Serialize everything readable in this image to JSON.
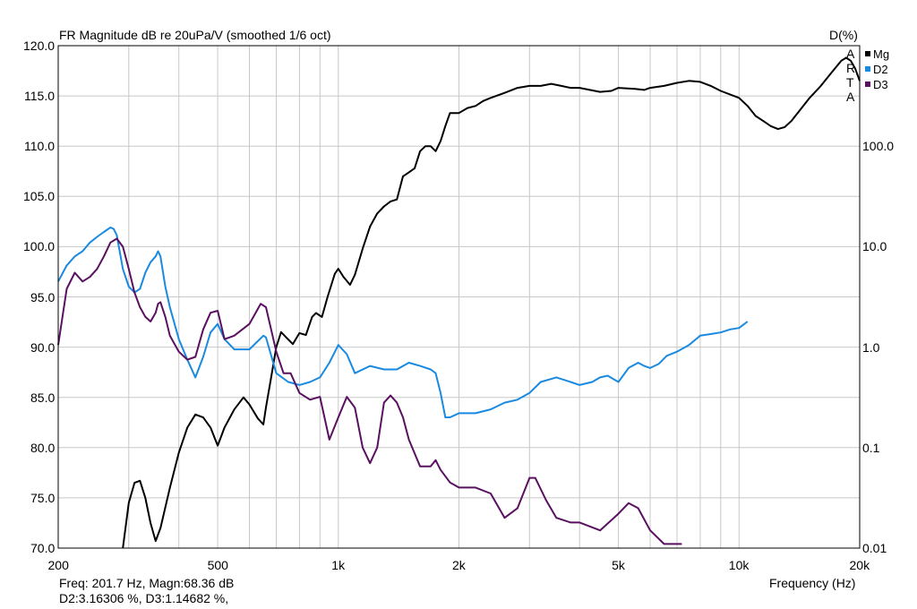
{
  "chart_data": {
    "type": "line",
    "title": "FR Magnitude dB re 20uPa/V (smoothed 1/6 oct)",
    "right_axis_title": "D(%)",
    "xlabel": "Frequency (Hz)",
    "xscale": "log",
    "xlim": [
      200,
      20000
    ],
    "ylim": [
      70,
      120
    ],
    "y2scale": "log",
    "y2lim": [
      0.01,
      1000
    ],
    "x_ticks": [
      {
        "value": 200,
        "label": "200"
      },
      {
        "value": 500,
        "label": "500"
      },
      {
        "value": 1000,
        "label": "1k"
      },
      {
        "value": 2000,
        "label": "2k"
      },
      {
        "value": 5000,
        "label": "5k"
      },
      {
        "value": 10000,
        "label": "10k"
      },
      {
        "value": 20000,
        "label": "20k"
      }
    ],
    "y_ticks": [
      "120.0",
      "115.0",
      "110.0",
      "105.0",
      "100.0",
      "95.0",
      "90.0",
      "85.0",
      "80.0",
      "75.0",
      "70.0"
    ],
    "y2_ticks": [
      {
        "value": 100,
        "label": "100.0"
      },
      {
        "value": 10,
        "label": "10.0"
      },
      {
        "value": 1,
        "label": "1.0"
      },
      {
        "value": 0.1,
        "label": "0.1"
      },
      {
        "value": 0.01,
        "label": "0.01"
      }
    ],
    "grid": true,
    "legend_position": "top-right",
    "series": [
      {
        "name": "Mg",
        "axis": "left",
        "color": "#000000",
        "points": [
          [
            290,
            70
          ],
          [
            300,
            74.5
          ],
          [
            310,
            76.5
          ],
          [
            320,
            76.7
          ],
          [
            330,
            75
          ],
          [
            340,
            72.5
          ],
          [
            350,
            70.7
          ],
          [
            360,
            72
          ],
          [
            380,
            76
          ],
          [
            400,
            79.5
          ],
          [
            420,
            82
          ],
          [
            440,
            83.3
          ],
          [
            460,
            83
          ],
          [
            480,
            82
          ],
          [
            500,
            80.2
          ],
          [
            520,
            82
          ],
          [
            550,
            83.8
          ],
          [
            580,
            85
          ],
          [
            600,
            84.3
          ],
          [
            630,
            82.9
          ],
          [
            650,
            82.3
          ],
          [
            660,
            84
          ],
          [
            680,
            87
          ],
          [
            700,
            90
          ],
          [
            720,
            91.5
          ],
          [
            740,
            91
          ],
          [
            770,
            90.3
          ],
          [
            800,
            91.4
          ],
          [
            830,
            91.2
          ],
          [
            860,
            93
          ],
          [
            880,
            93.4
          ],
          [
            910,
            93
          ],
          [
            940,
            95
          ],
          [
            980,
            97.3
          ],
          [
            1000,
            97.8
          ],
          [
            1030,
            97
          ],
          [
            1070,
            96.2
          ],
          [
            1100,
            97.2
          ],
          [
            1150,
            99.8
          ],
          [
            1200,
            102
          ],
          [
            1250,
            103.3
          ],
          [
            1300,
            104
          ],
          [
            1350,
            104.5
          ],
          [
            1400,
            104.7
          ],
          [
            1450,
            107
          ],
          [
            1500,
            107.4
          ],
          [
            1550,
            107.8
          ],
          [
            1600,
            109.5
          ],
          [
            1650,
            110
          ],
          [
            1700,
            110
          ],
          [
            1750,
            109.5
          ],
          [
            1800,
            110.5
          ],
          [
            1850,
            112
          ],
          [
            1900,
            113.3
          ],
          [
            2000,
            113.3
          ],
          [
            2100,
            113.8
          ],
          [
            2200,
            114
          ],
          [
            2300,
            114.5
          ],
          [
            2400,
            114.8
          ],
          [
            2600,
            115.3
          ],
          [
            2800,
            115.8
          ],
          [
            3000,
            116
          ],
          [
            3200,
            116
          ],
          [
            3400,
            116.2
          ],
          [
            3600,
            116
          ],
          [
            3800,
            115.8
          ],
          [
            4000,
            115.8
          ],
          [
            4500,
            115.4
          ],
          [
            4800,
            115.5
          ],
          [
            5000,
            115.8
          ],
          [
            5500,
            115.7
          ],
          [
            5800,
            115.6
          ],
          [
            6000,
            115.8
          ],
          [
            6500,
            116
          ],
          [
            7000,
            116.3
          ],
          [
            7500,
            116.5
          ],
          [
            8000,
            116.4
          ],
          [
            8500,
            116
          ],
          [
            9000,
            115.5
          ],
          [
            10000,
            114.8
          ],
          [
            10500,
            114
          ],
          [
            11000,
            113
          ],
          [
            11500,
            112.5
          ],
          [
            12000,
            112
          ],
          [
            12500,
            111.7
          ],
          [
            13000,
            111.9
          ],
          [
            13500,
            112.5
          ],
          [
            14000,
            113.3
          ],
          [
            15000,
            114.8
          ],
          [
            16000,
            116
          ],
          [
            17000,
            117.3
          ],
          [
            18000,
            118.5
          ],
          [
            18500,
            118.8
          ],
          [
            19000,
            118.5
          ],
          [
            19500,
            117.7
          ],
          [
            20000,
            116.5
          ]
        ]
      },
      {
        "name": "D2",
        "axis": "right",
        "color": "#1a8ae0",
        "points": [
          [
            200,
            4.5
          ],
          [
            210,
            6.5
          ],
          [
            220,
            8
          ],
          [
            230,
            9
          ],
          [
            240,
            11
          ],
          [
            250,
            12.5
          ],
          [
            260,
            14
          ],
          [
            270,
            15.5
          ],
          [
            275,
            15
          ],
          [
            280,
            13
          ],
          [
            290,
            6
          ],
          [
            300,
            4
          ],
          [
            310,
            3.5
          ],
          [
            320,
            3.8
          ],
          [
            330,
            5.5
          ],
          [
            340,
            7
          ],
          [
            350,
            8
          ],
          [
            355,
            9
          ],
          [
            360,
            8
          ],
          [
            370,
            4
          ],
          [
            380,
            2.5
          ],
          [
            400,
            1.2
          ],
          [
            420,
            0.75
          ],
          [
            440,
            0.5
          ],
          [
            460,
            0.8
          ],
          [
            480,
            1.4
          ],
          [
            500,
            1.7
          ],
          [
            520,
            1.2
          ],
          [
            550,
            0.95
          ],
          [
            600,
            0.95
          ],
          [
            650,
            1.3
          ],
          [
            660,
            1.25
          ],
          [
            700,
            0.55
          ],
          [
            750,
            0.45
          ],
          [
            800,
            0.42
          ],
          [
            850,
            0.45
          ],
          [
            900,
            0.5
          ],
          [
            950,
            0.7
          ],
          [
            1000,
            1.05
          ],
          [
            1050,
            0.85
          ],
          [
            1100,
            0.55
          ],
          [
            1200,
            0.65
          ],
          [
            1300,
            0.6
          ],
          [
            1400,
            0.6
          ],
          [
            1500,
            0.7
          ],
          [
            1600,
            0.65
          ],
          [
            1700,
            0.6
          ],
          [
            1750,
            0.55
          ],
          [
            1800,
            0.35
          ],
          [
            1850,
            0.2
          ],
          [
            1900,
            0.2
          ],
          [
            2000,
            0.22
          ],
          [
            2200,
            0.22
          ],
          [
            2400,
            0.24
          ],
          [
            2600,
            0.28
          ],
          [
            2800,
            0.3
          ],
          [
            3000,
            0.35
          ],
          [
            3200,
            0.45
          ],
          [
            3500,
            0.5
          ],
          [
            3800,
            0.45
          ],
          [
            4000,
            0.42
          ],
          [
            4300,
            0.45
          ],
          [
            4500,
            0.5
          ],
          [
            4700,
            0.52
          ],
          [
            5000,
            0.45
          ],
          [
            5300,
            0.62
          ],
          [
            5600,
            0.7
          ],
          [
            5800,
            0.65
          ],
          [
            6000,
            0.62
          ],
          [
            6300,
            0.68
          ],
          [
            6600,
            0.82
          ],
          [
            7000,
            0.9
          ],
          [
            7500,
            1.05
          ],
          [
            8000,
            1.3
          ],
          [
            8500,
            1.35
          ],
          [
            9000,
            1.4
          ],
          [
            9500,
            1.5
          ],
          [
            10000,
            1.55
          ],
          [
            10500,
            1.8
          ]
        ]
      },
      {
        "name": "D3",
        "axis": "right",
        "color": "#5a1060",
        "points": [
          [
            200,
            1.05
          ],
          [
            210,
            3.8
          ],
          [
            220,
            5.5
          ],
          [
            230,
            4.5
          ],
          [
            240,
            5
          ],
          [
            250,
            6
          ],
          [
            260,
            8
          ],
          [
            270,
            11
          ],
          [
            280,
            12
          ],
          [
            290,
            10
          ],
          [
            300,
            6
          ],
          [
            310,
            3.5
          ],
          [
            320,
            2.5
          ],
          [
            330,
            2
          ],
          [
            340,
            1.8
          ],
          [
            350,
            2.2
          ],
          [
            355,
            2.7
          ],
          [
            360,
            2.8
          ],
          [
            370,
            2
          ],
          [
            380,
            1.3
          ],
          [
            400,
            0.9
          ],
          [
            420,
            0.75
          ],
          [
            440,
            0.8
          ],
          [
            460,
            1.5
          ],
          [
            480,
            2.2
          ],
          [
            500,
            2.3
          ],
          [
            520,
            1.2
          ],
          [
            550,
            1.3
          ],
          [
            600,
            1.7
          ],
          [
            640,
            2.7
          ],
          [
            660,
            2.5
          ],
          [
            700,
            0.9
          ],
          [
            730,
            0.55
          ],
          [
            760,
            0.55
          ],
          [
            800,
            0.35
          ],
          [
            850,
            0.3
          ],
          [
            900,
            0.32
          ],
          [
            950,
            0.12
          ],
          [
            1000,
            0.2
          ],
          [
            1050,
            0.32
          ],
          [
            1100,
            0.25
          ],
          [
            1150,
            0.1
          ],
          [
            1200,
            0.07
          ],
          [
            1250,
            0.1
          ],
          [
            1300,
            0.28
          ],
          [
            1350,
            0.33
          ],
          [
            1400,
            0.28
          ],
          [
            1450,
            0.2
          ],
          [
            1500,
            0.12
          ],
          [
            1600,
            0.065
          ],
          [
            1700,
            0.065
          ],
          [
            1750,
            0.075
          ],
          [
            1800,
            0.06
          ],
          [
            1900,
            0.045
          ],
          [
            2000,
            0.04
          ],
          [
            2200,
            0.04
          ],
          [
            2400,
            0.035
          ],
          [
            2600,
            0.02
          ],
          [
            2800,
            0.025
          ],
          [
            3000,
            0.05
          ],
          [
            3100,
            0.05
          ],
          [
            3300,
            0.03
          ],
          [
            3500,
            0.02
          ],
          [
            3800,
            0.018
          ],
          [
            4000,
            0.018
          ],
          [
            4500,
            0.015
          ],
          [
            5000,
            0.022
          ],
          [
            5300,
            0.028
          ],
          [
            5600,
            0.025
          ],
          [
            6000,
            0.015
          ],
          [
            6500,
            0.011
          ],
          [
            7000,
            0.011
          ],
          [
            7200,
            0.011
          ]
        ]
      }
    ],
    "artefact_letters": [
      "A",
      "R",
      "T",
      "A"
    ]
  },
  "status": {
    "line1": "Freq: 201.7 Hz, Magn:68.36 dB",
    "line2": "D2:3.16306 %, D3:1.14682 %,"
  }
}
